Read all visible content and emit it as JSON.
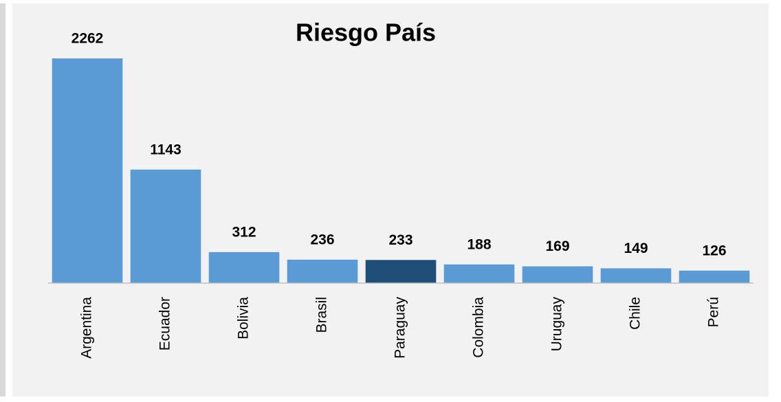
{
  "chart_data": {
    "type": "bar",
    "title": "Riesgo País",
    "categories": [
      "Argentina",
      "Ecuador",
      "Bolivia",
      "Brasil",
      "Paraguay",
      "Colombia",
      "Uruguay",
      "Chile",
      "Perú"
    ],
    "values": [
      2262,
      1143,
      312,
      236,
      233,
      188,
      169,
      149,
      126
    ],
    "colors": [
      "#5b9bd5",
      "#5b9bd5",
      "#5b9bd5",
      "#5b9bd5",
      "#1f4e79",
      "#5b9bd5",
      "#5b9bd5",
      "#5b9bd5",
      "#5b9bd5"
    ]
  }
}
